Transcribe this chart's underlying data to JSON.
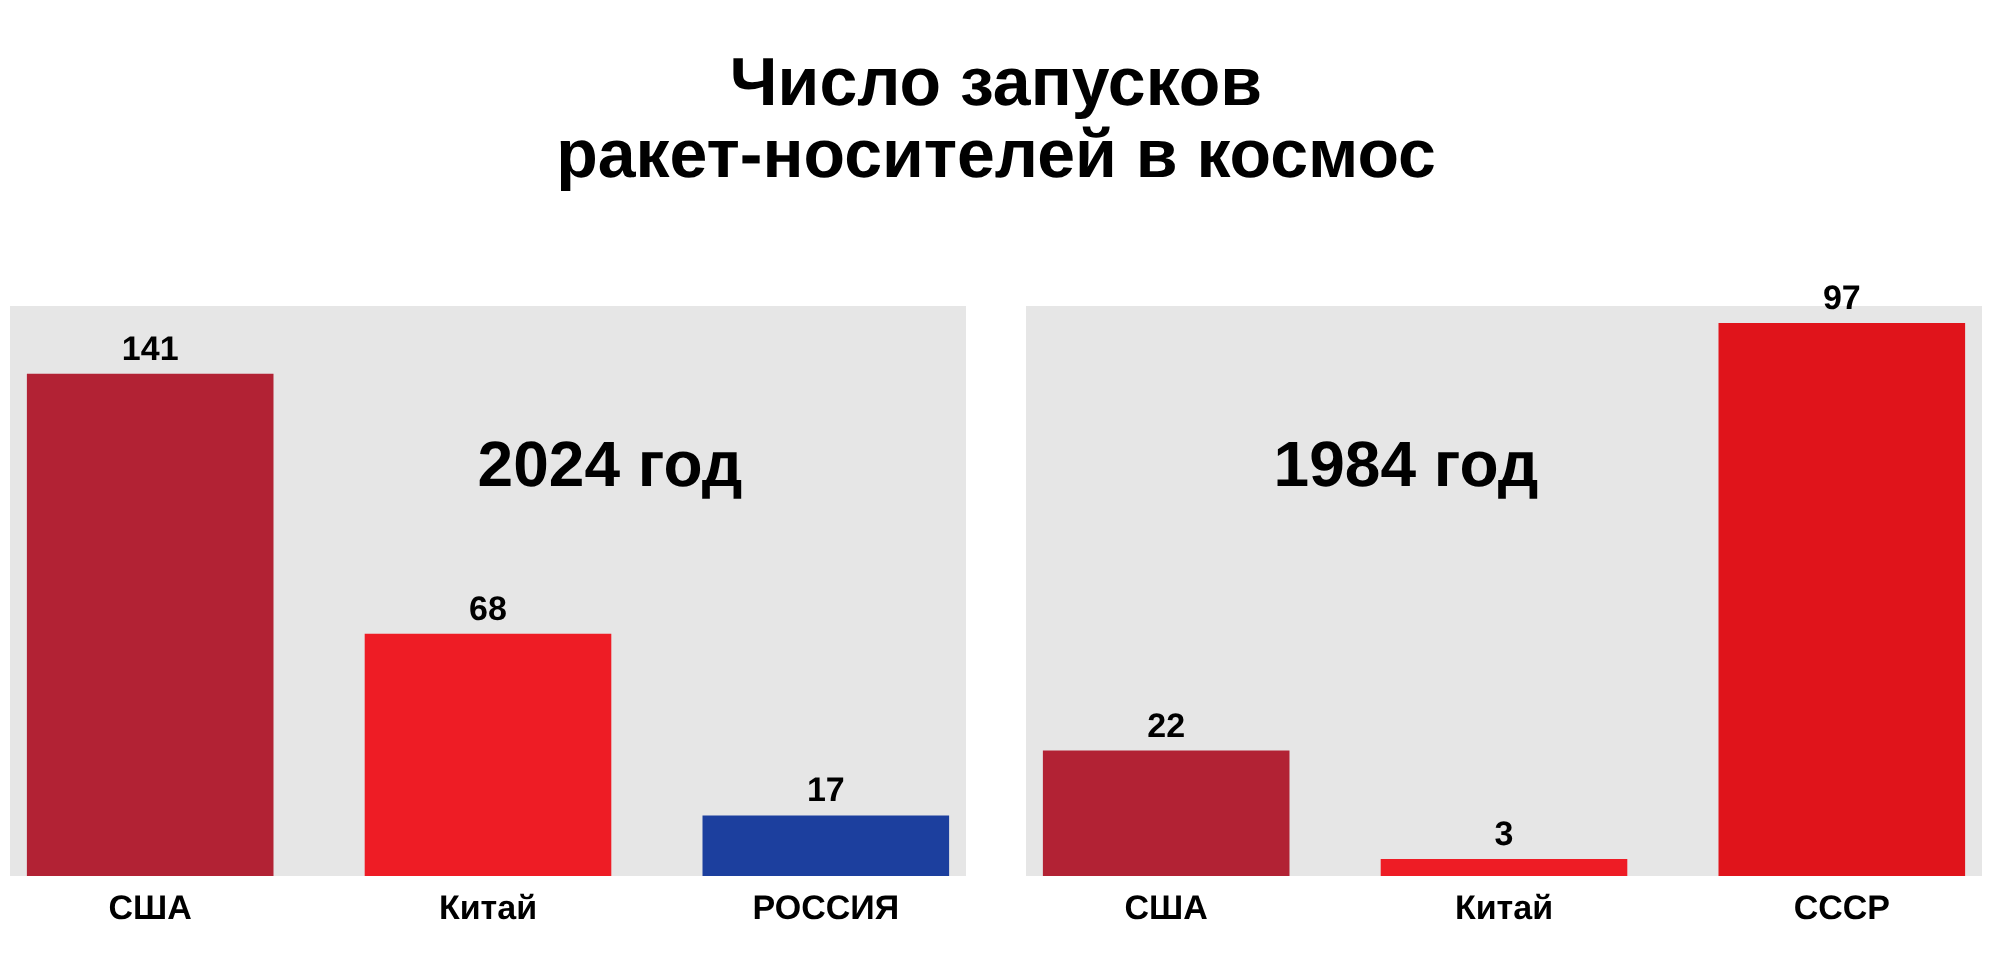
{
  "chart_data": [
    {
      "type": "bar",
      "title": "Число запусков\nракет-носителей в космос",
      "subtitle": "2024 год",
      "categories": [
        "США",
        "Китай",
        "РОССИЯ"
      ],
      "values": [
        141,
        68,
        17
      ],
      "colors": [
        "#b22234",
        "#ee1c25",
        "#1c3f9e"
      ],
      "data_labels": true,
      "grid": false,
      "legend": false
    },
    {
      "type": "bar",
      "subtitle": "1984 год",
      "categories": [
        "США",
        "Китай",
        "СССР"
      ],
      "values": [
        22,
        3,
        97
      ],
      "colors": [
        "#b22234",
        "#ee1c25",
        "#e0141b"
      ],
      "data_labels": true,
      "grid": false,
      "legend": false
    }
  ]
}
